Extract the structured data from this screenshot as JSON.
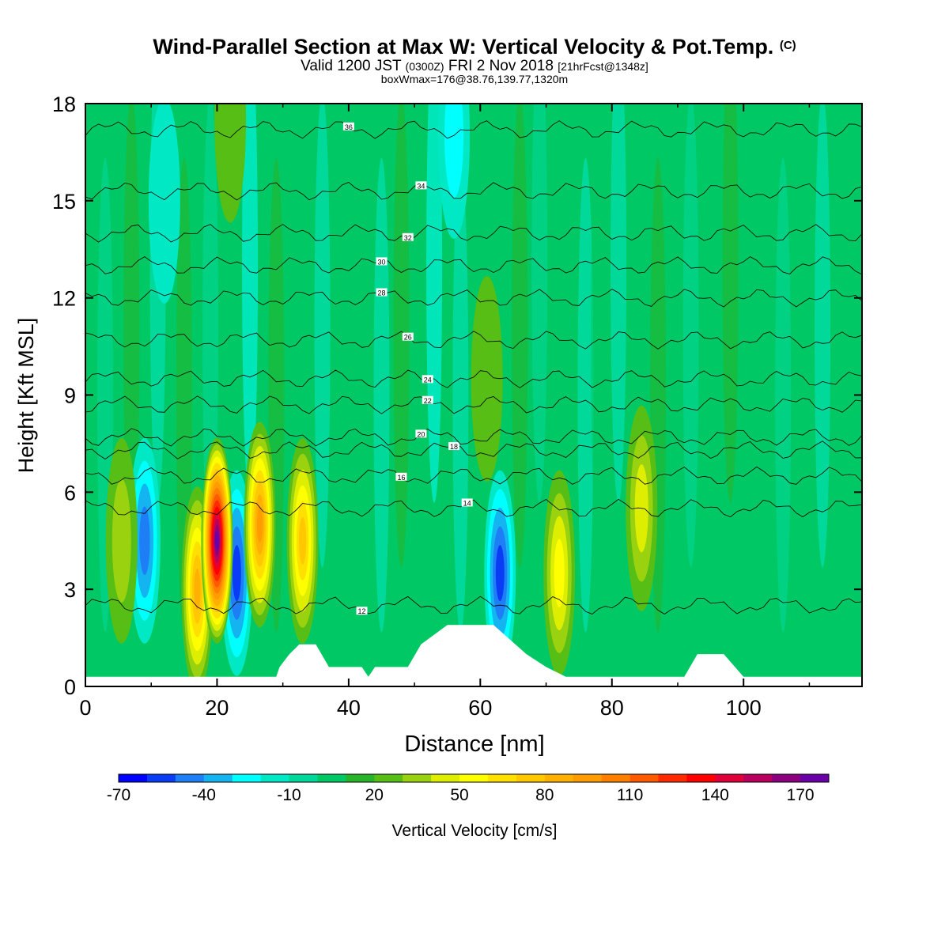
{
  "title": "Wind-Parallel Section at Max W: Vertical Velocity & Pot.Temp.",
  "title_mark": "(C)",
  "subtitle_main": "Valid 1200 JST",
  "subtitle_utc": "(0300Z)",
  "subtitle_date": "FRI 2 Nov 2018",
  "subtitle_fcst": "[21hrFcst@1348z]",
  "subtitle2": "boxWmax=176@38.76,139.77,1320m",
  "chart_data": {
    "type": "heatmap",
    "xlabel": "Distance [nm]",
    "ylabel": "Height [Kft MSL]",
    "xlim": [
      0,
      118
    ],
    "ylim": [
      0,
      18
    ],
    "x_ticks": [
      "0",
      "20",
      "40",
      "60",
      "80",
      "100"
    ],
    "y_ticks": [
      "0",
      "3",
      "6",
      "9",
      "12",
      "15",
      "18"
    ],
    "colorbar": {
      "label": "Vertical Velocity [cm/s]",
      "tick_labels": [
        "-70",
        "-40",
        "-10",
        "20",
        "50",
        "80",
        "110",
        "140",
        "170"
      ],
      "levels": [
        -70,
        -60,
        -50,
        -40,
        -30,
        -20,
        -10,
        0,
        10,
        20,
        30,
        40,
        50,
        60,
        70,
        80,
        90,
        100,
        110,
        120,
        130,
        140,
        150,
        160,
        170,
        180
      ],
      "colors": [
        "#0000ff",
        "#0a3cf5",
        "#1e7ef5",
        "#14b4f0",
        "#00ffff",
        "#00e8c4",
        "#00d89a",
        "#00c864",
        "#28b428",
        "#56be14",
        "#9ad210",
        "#ddee00",
        "#ffff00",
        "#ffe000",
        "#ffc800",
        "#ffb000",
        "#ff9c00",
        "#ff8000",
        "#ff5a00",
        "#ff2a00",
        "#ff0000",
        "#e0003a",
        "#b8005e",
        "#8c0080",
        "#6a00a8"
      ]
    },
    "updraft_cores": [
      {
        "x": 5.5,
        "z": 4.5,
        "w": 35
      },
      {
        "x": 17.0,
        "z": 3.0,
        "w": 80
      },
      {
        "x": 20.0,
        "z": 4.5,
        "w": 176
      },
      {
        "x": 26.5,
        "z": 5.0,
        "w": 90
      },
      {
        "x": 33.0,
        "z": 4.5,
        "w": 70
      },
      {
        "x": 72.0,
        "z": 3.5,
        "w": 55
      },
      {
        "x": 84.5,
        "z": 5.5,
        "w": 40
      },
      {
        "x": 61.0,
        "z": 9.5,
        "w": 25
      },
      {
        "x": 22.0,
        "z": 17.5,
        "w": 25
      }
    ],
    "downdraft_cores": [
      {
        "x": 9.0,
        "z": 4.5,
        "w": -55
      },
      {
        "x": 23.0,
        "z": 3.5,
        "w": -65
      },
      {
        "x": 63.0,
        "z": 3.5,
        "w": -65
      },
      {
        "x": 56.0,
        "z": 17.0,
        "w": -30
      },
      {
        "x": 12.0,
        "z": 15.0,
        "w": -20
      }
    ],
    "terrain": [
      {
        "x": 0,
        "z": 0.3
      },
      {
        "x": 29,
        "z": 0.3
      },
      {
        "x": 29.5,
        "z": 0.6
      },
      {
        "x": 31,
        "z": 1.0
      },
      {
        "x": 32.5,
        "z": 1.3
      },
      {
        "x": 35,
        "z": 1.3
      },
      {
        "x": 37,
        "z": 0.6
      },
      {
        "x": 42,
        "z": 0.6
      },
      {
        "x": 43,
        "z": 0.3
      },
      {
        "x": 44,
        "z": 0.6
      },
      {
        "x": 49,
        "z": 0.6
      },
      {
        "x": 51,
        "z": 1.3
      },
      {
        "x": 55,
        "z": 1.9
      },
      {
        "x": 62,
        "z": 1.9
      },
      {
        "x": 67,
        "z": 1.0
      },
      {
        "x": 70,
        "z": 0.6
      },
      {
        "x": 73,
        "z": 0.3
      },
      {
        "x": 91,
        "z": 0.3
      },
      {
        "x": 93,
        "z": 1.0
      },
      {
        "x": 97,
        "z": 1.0
      },
      {
        "x": 100,
        "z": 0.3
      },
      {
        "x": 118,
        "z": 0.3
      }
    ],
    "theta_contours": [
      {
        "label": "12",
        "z": 2.5,
        "label_x": 42
      },
      {
        "label": "14",
        "z": 5.5,
        "label_x": 58
      },
      {
        "label": "16",
        "z": 6.5,
        "label_x": 48
      },
      {
        "label": "18",
        "z": 7.3,
        "label_x": 56
      },
      {
        "label": "20",
        "z": 7.7,
        "label_x": 51
      },
      {
        "label": "22",
        "z": 8.7,
        "label_x": 52
      },
      {
        "label": "24",
        "z": 9.5,
        "label_x": 52
      },
      {
        "label": "26",
        "z": 10.7,
        "label_x": 49
      },
      {
        "label": "28",
        "z": 12.0,
        "label_x": 45
      },
      {
        "label": "30",
        "z": 13.0,
        "label_x": 45
      },
      {
        "label": "32",
        "z": 14.0,
        "label_x": 49
      },
      {
        "label": "34",
        "z": 15.3,
        "label_x": 51
      },
      {
        "label": "36",
        "z": 17.2,
        "label_x": 40
      }
    ]
  }
}
